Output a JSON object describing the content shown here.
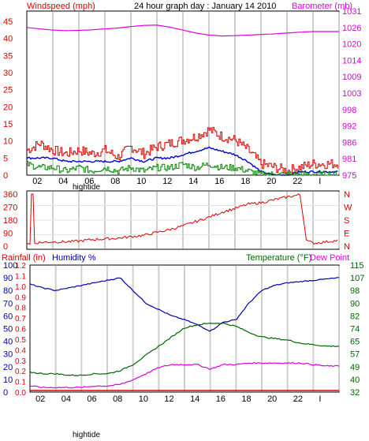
{
  "colors": {
    "wind": "#dd0000",
    "gust": "#dd0000",
    "avg_wind": "#0000cc",
    "wind_low": "#008800",
    "barometer": "#dd00dd",
    "direction": "#dd0000",
    "rain": "#dd0000",
    "humidity": "#0000aa",
    "temperature": "#006600",
    "dewpoint": "#dd00dd",
    "grid": "#cfcfcf",
    "axis": "#000000"
  },
  "chart_data": [
    {
      "type": "line",
      "title": "24 hour graph day : January 14 2010",
      "left_label": "Windspeed (mph)",
      "right_label": "Barometer (mb)",
      "x_ticks": [
        "02",
        "04",
        "06",
        "08",
        "10",
        "12",
        "14",
        "16",
        "18",
        "20",
        "22",
        "I"
      ],
      "x_annotation": "hightide",
      "y_left_ticks": [
        "0",
        "5",
        "10",
        "15",
        "20",
        "25",
        "30",
        "35",
        "40",
        "45"
      ],
      "y_right_ticks": [
        "975",
        "981",
        "986",
        "992",
        "998",
        "1003",
        "1009",
        "1014",
        "1020",
        "1026",
        "1031"
      ],
      "ylim_left": [
        0,
        48
      ],
      "ylim_right": [
        975,
        1031
      ],
      "series": [
        {
          "name": "wind_gust",
          "axis": "left",
          "x": [
            0,
            1,
            2,
            3,
            4,
            5,
            6,
            7,
            8,
            9,
            10,
            11,
            12,
            13,
            14,
            15,
            16,
            17,
            18,
            19,
            20,
            21,
            22,
            23,
            24
          ],
          "values": [
            7,
            9,
            7,
            6,
            7,
            6,
            7,
            5,
            8,
            6,
            8,
            9,
            10,
            11,
            13,
            11,
            10,
            7,
            3,
            2,
            1,
            2,
            3,
            3,
            3
          ]
        },
        {
          "name": "wind_avg",
          "axis": "left",
          "x": [
            0,
            1,
            2,
            3,
            4,
            5,
            6,
            7,
            8,
            9,
            10,
            11,
            12,
            13,
            14,
            15,
            16,
            17,
            18,
            19,
            20,
            21,
            22,
            23,
            24
          ],
          "values": [
            5,
            5,
            5,
            4,
            4,
            4,
            4,
            4,
            5,
            4,
            5,
            5,
            6,
            7,
            8,
            7,
            6,
            4,
            1,
            0,
            0,
            1,
            1,
            1,
            1
          ]
        },
        {
          "name": "wind_low",
          "axis": "left",
          "x": [
            0,
            1,
            2,
            3,
            4,
            5,
            6,
            7,
            8,
            9,
            10,
            11,
            12,
            13,
            14,
            15,
            16,
            17,
            18,
            19,
            20,
            21,
            22,
            23,
            24
          ],
          "values": [
            3,
            2,
            2,
            1,
            2,
            1,
            2,
            1,
            2,
            1,
            2,
            2,
            3,
            2,
            3,
            2,
            2,
            1,
            0,
            0,
            0,
            0,
            0,
            0,
            0
          ]
        },
        {
          "name": "barometer",
          "axis": "right",
          "x": [
            0,
            1,
            2,
            3,
            4,
            5,
            6,
            7,
            8,
            9,
            10,
            11,
            12,
            13,
            14,
            15,
            16,
            17,
            18,
            19,
            20,
            21,
            22,
            23,
            24
          ],
          "values": [
            1025.4,
            1024.9,
            1024.5,
            1024.3,
            1024.4,
            1024.6,
            1024.9,
            1025.2,
            1025.7,
            1026.1,
            1026.2,
            1025.5,
            1024.5,
            1023.5,
            1022.8,
            1022.5,
            1022.6,
            1022.8,
            1023.0,
            1023.2,
            1023.5,
            1023.8,
            1024.0,
            1024.0,
            1024.0
          ]
        }
      ]
    },
    {
      "type": "line",
      "left_ticks": [
        "0",
        "90",
        "180",
        "270",
        "360"
      ],
      "right_ticks": [
        "N",
        "W",
        "S",
        "E",
        "N"
      ],
      "ylim": [
        0,
        360
      ],
      "series": [
        {
          "name": "wind_direction",
          "x": [
            0,
            0.3,
            0.4,
            0.5,
            1,
            2,
            3,
            4,
            5,
            6,
            7,
            8,
            9,
            10,
            11,
            12,
            13,
            14,
            15,
            16,
            17,
            18,
            19,
            20,
            21,
            21.5,
            22,
            23,
            24
          ],
          "values": [
            20,
            10,
            360,
            20,
            25,
            30,
            30,
            35,
            45,
            50,
            55,
            65,
            75,
            95,
            115,
            140,
            170,
            200,
            235,
            260,
            290,
            300,
            320,
            340,
            355,
            40,
            20,
            30,
            40
          ]
        }
      ]
    },
    {
      "type": "line",
      "left_label": "Rainfall (in)",
      "left_label2": "Humidity %",
      "right_label": "Temperature (°F)",
      "right_label2": "Dew Point",
      "x_ticks": [
        "02",
        "04",
        "06",
        "08",
        "10",
        "12",
        "14",
        "16",
        "18",
        "20",
        "22",
        "I"
      ],
      "x_annotation": "hightide",
      "y_rain_ticks": [
        "0.0",
        "0.1",
        "0.2",
        "0.3",
        "0.4",
        "0.5",
        "0.6",
        "0.7",
        "0.8",
        "0.9",
        "1.0",
        "1.1",
        "1.2"
      ],
      "y_hum_ticks": [
        "0",
        "10",
        "20",
        "30",
        "40",
        "50",
        "60",
        "70",
        "80",
        "90",
        "100"
      ],
      "y_temp_ticks": [
        "32",
        "40",
        "49",
        "57",
        "65",
        "74",
        "82",
        "90",
        "98",
        "107",
        "115"
      ],
      "ylim_humidity": [
        0,
        100
      ],
      "ylim_temp": [
        32,
        115
      ],
      "series": [
        {
          "name": "humidity",
          "axis": "humidity",
          "x": [
            0,
            1,
            2,
            3,
            4,
            5,
            6,
            7,
            8,
            9,
            10,
            11,
            12,
            13,
            14,
            15,
            16,
            17,
            18,
            19,
            20,
            21,
            22,
            23,
            24
          ],
          "values": [
            85,
            82,
            80,
            82,
            84,
            86,
            88,
            90,
            80,
            70,
            65,
            60,
            57,
            53,
            48,
            55,
            57,
            70,
            80,
            84,
            86,
            87,
            88,
            89,
            90
          ]
        },
        {
          "name": "temperature",
          "axis": "temp",
          "x": [
            0,
            1,
            2,
            3,
            4,
            5,
            6,
            7,
            8,
            9,
            10,
            11,
            12,
            13,
            14,
            15,
            16,
            17,
            18,
            19,
            20,
            21,
            22,
            23,
            24
          ],
          "values": [
            45,
            44,
            44,
            43,
            43,
            44,
            44,
            46,
            50,
            56,
            62,
            68,
            74,
            76,
            77,
            77,
            75,
            71,
            68,
            67,
            66,
            64,
            63,
            62,
            62
          ]
        },
        {
          "name": "dewpoint",
          "axis": "temp",
          "x": [
            0,
            1,
            2,
            3,
            4,
            5,
            6,
            7,
            8,
            9,
            10,
            11,
            12,
            13,
            14,
            15,
            16,
            17,
            18,
            19,
            20,
            21,
            22,
            23,
            24
          ],
          "values": [
            36,
            35,
            35,
            35,
            35,
            36,
            36,
            37,
            40,
            44,
            48,
            50,
            50,
            50,
            47,
            50,
            50,
            51,
            51,
            51,
            51,
            51,
            50,
            49,
            49
          ]
        },
        {
          "name": "rainfall",
          "axis": "rain",
          "x": [
            0,
            24
          ],
          "values": [
            0,
            0
          ]
        }
      ]
    }
  ]
}
